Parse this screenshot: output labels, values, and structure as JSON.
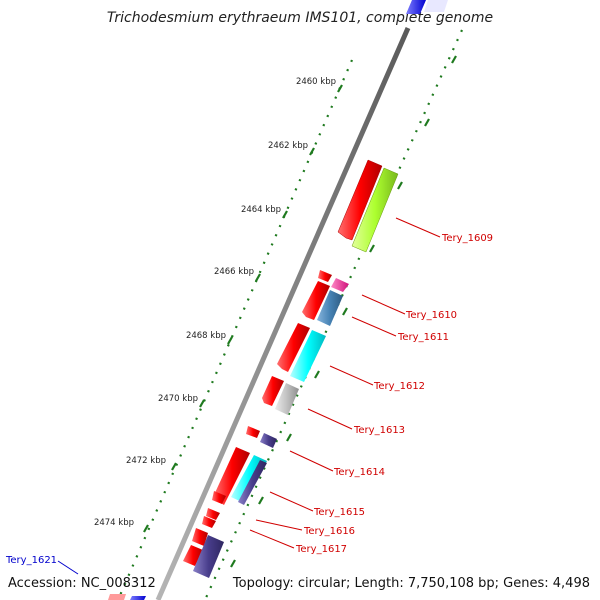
{
  "title": "Trichodesmium erythraeum IMS101, complete genome",
  "accession": "Accession: NC_008312",
  "topology": "Topology: circular; Length: 7,750,108 bp; Genes: 4,498",
  "ruler_ticks": [
    "2460 kbp",
    "2462 kbp",
    "2464 kbp",
    "2466 kbp",
    "2468 kbp",
    "2470 kbp",
    "2472 kbp",
    "2474 kbp"
  ],
  "gene_labels": [
    {
      "text": "Tery_1609",
      "color": "#d00000"
    },
    {
      "text": "Tery_1610",
      "color": "#d00000"
    },
    {
      "text": "Tery_1611",
      "color": "#d00000"
    },
    {
      "text": "Tery_1612",
      "color": "#d00000"
    },
    {
      "text": "Tery_1613",
      "color": "#d00000"
    },
    {
      "text": "Tery_1614",
      "color": "#d00000"
    },
    {
      "text": "Tery_1615",
      "color": "#d00000"
    },
    {
      "text": "Tery_1616",
      "color": "#d00000"
    },
    {
      "text": "Tery_1617",
      "color": "#d00000"
    },
    {
      "text": "Tery_1621",
      "color": "#0000cc"
    }
  ],
  "colors": {
    "forward_gene": "#ff0000",
    "backbone": "#7a7a7a",
    "tick_marks": "#1f7a1f",
    "cog_green": "#adff2f",
    "cog_magenta": "#ff1493",
    "cog_steelblue": "#4682b4",
    "cog_cyan": "#00ffff",
    "cog_silver": "#c0c0c0",
    "cog_slateblue": "#483d8b"
  }
}
